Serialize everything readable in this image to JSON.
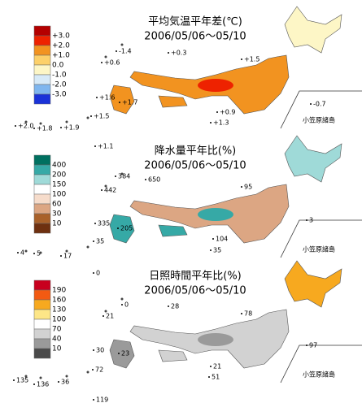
{
  "maps": [
    {
      "title": "平均気温平年差(℃)",
      "period": "2006/05/06～05/10",
      "legend_labels": [
        "+3.0",
        "+2.0",
        "+1.0",
        "0.0",
        "-1.0",
        "-2.0",
        "-3.0"
      ],
      "legend_colors": [
        "#b40000",
        "#ee2200",
        "#f29320",
        "#fcd06a",
        "#fdf6c6",
        "#d7eaf8",
        "#7fb6ef",
        "#1a32d8"
      ],
      "annotations": [
        "-1.4",
        "+0.3",
        "+0.6",
        "+1.5",
        "+1.6",
        "+1.7",
        "+0.9",
        "+1.3",
        "-0.7",
        "+2.0",
        "+1.8",
        "+1.9",
        "+1.5",
        "+1.1"
      ],
      "islands_label": "小笠原諸島"
    },
    {
      "title": "降水量平年比(%)",
      "period": "2006/05/06～05/10",
      "legend_labels": [
        "400",
        "200",
        "150",
        "100",
        "60",
        "30",
        "10"
      ],
      "legend_colors": [
        "#007060",
        "#36a9a6",
        "#9fdad8",
        "#ffffff",
        "#f6dccb",
        "#dca683",
        "#a9612a",
        "#6e3010"
      ],
      "annotations": [
        "384",
        "650",
        "442",
        "95",
        "335",
        "205",
        "3",
        "104",
        "35",
        "4",
        "5",
        "17",
        "35",
        "0"
      ],
      "islands_label": "小笠原諸島"
    },
    {
      "title": "日照時間平年比(%)",
      "period": "2006/05/06～05/10",
      "legend_labels": [
        "190",
        "160",
        "130",
        "100",
        "70",
        "40",
        "10"
      ],
      "legend_colors": [
        "#c8001e",
        "#f25a12",
        "#f7a91f",
        "#fde687",
        "#ffffff",
        "#d2d2d2",
        "#9a9a9a",
        "#4a4a4a"
      ],
      "annotations": [
        "0",
        "28",
        "21",
        "78",
        "30",
        "23",
        "97",
        "21",
        "51",
        "135",
        "136",
        "36",
        "72",
        "119"
      ],
      "islands_label": "小笠原諸島"
    }
  ]
}
